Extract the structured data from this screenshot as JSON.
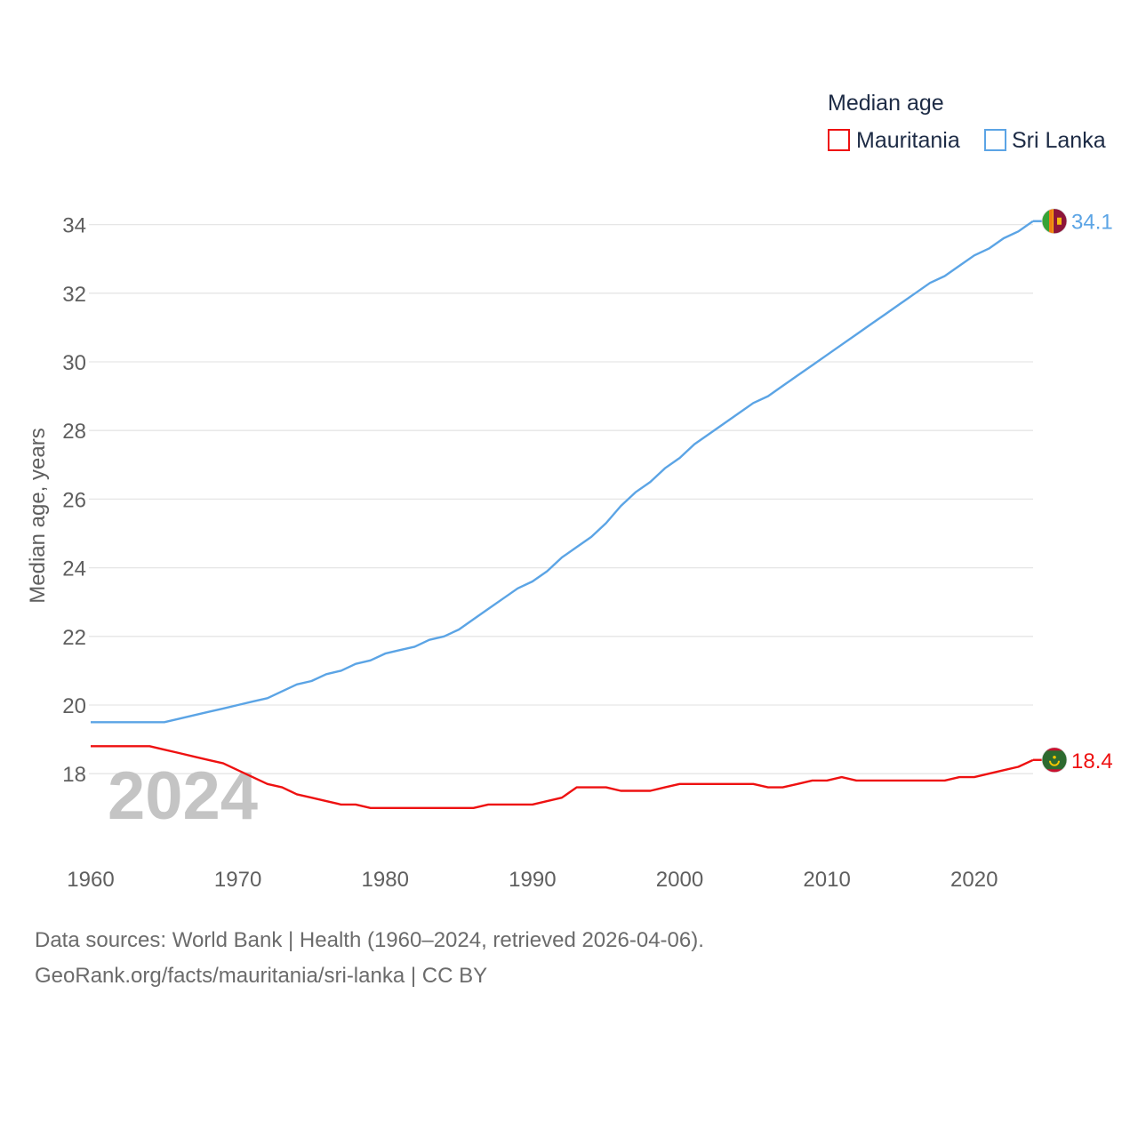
{
  "chart_data": {
    "type": "line",
    "legend": {
      "title": "Median age",
      "position": "top-right"
    },
    "ylabel": "Median age, years",
    "xlabel": "",
    "xlim": [
      1960,
      2024
    ],
    "ylim": [
      16,
      35
    ],
    "x_ticks": [
      1960,
      1970,
      1980,
      1990,
      2000,
      2010,
      2020
    ],
    "y_ticks": [
      18,
      20,
      22,
      24,
      26,
      28,
      30,
      32,
      34
    ],
    "year_watermark": "2024",
    "series": [
      {
        "name": "Mauritania",
        "color": "#ee1111",
        "flag": "mauritania-flag-icon",
        "end_label": "18.4",
        "x": [
          1960,
          1961,
          1962,
          1963,
          1964,
          1965,
          1966,
          1967,
          1968,
          1969,
          1970,
          1971,
          1972,
          1973,
          1974,
          1975,
          1976,
          1977,
          1978,
          1979,
          1980,
          1981,
          1982,
          1983,
          1984,
          1985,
          1986,
          1987,
          1988,
          1989,
          1990,
          1991,
          1992,
          1993,
          1994,
          1995,
          1996,
          1997,
          1998,
          1999,
          2000,
          2001,
          2002,
          2003,
          2004,
          2005,
          2006,
          2007,
          2008,
          2009,
          2010,
          2011,
          2012,
          2013,
          2014,
          2015,
          2016,
          2017,
          2018,
          2019,
          2020,
          2021,
          2022,
          2023,
          2024
        ],
        "values": [
          18.8,
          18.8,
          18.8,
          18.8,
          18.8,
          18.7,
          18.6,
          18.5,
          18.4,
          18.3,
          18.1,
          17.9,
          17.7,
          17.6,
          17.4,
          17.3,
          17.2,
          17.1,
          17.1,
          17.0,
          17.0,
          17.0,
          17.0,
          17.0,
          17.0,
          17.0,
          17.0,
          17.1,
          17.1,
          17.1,
          17.1,
          17.2,
          17.3,
          17.6,
          17.6,
          17.6,
          17.5,
          17.5,
          17.5,
          17.6,
          17.7,
          17.7,
          17.7,
          17.7,
          17.7,
          17.7,
          17.6,
          17.6,
          17.7,
          17.8,
          17.8,
          17.9,
          17.8,
          17.8,
          17.8,
          17.8,
          17.8,
          17.8,
          17.8,
          17.9,
          17.9,
          18.0,
          18.1,
          18.2,
          18.4
        ]
      },
      {
        "name": "Sri Lanka",
        "color": "#5ba4e5",
        "flag": "sri-lanka-flag-icon",
        "end_label": "34.1",
        "x": [
          1960,
          1961,
          1962,
          1963,
          1964,
          1965,
          1966,
          1967,
          1968,
          1969,
          1970,
          1971,
          1972,
          1973,
          1974,
          1975,
          1976,
          1977,
          1978,
          1979,
          1980,
          1981,
          1982,
          1983,
          1984,
          1985,
          1986,
          1987,
          1988,
          1989,
          1990,
          1991,
          1992,
          1993,
          1994,
          1995,
          1996,
          1997,
          1998,
          1999,
          2000,
          2001,
          2002,
          2003,
          2004,
          2005,
          2006,
          2007,
          2008,
          2009,
          2010,
          2011,
          2012,
          2013,
          2014,
          2015,
          2016,
          2017,
          2018,
          2019,
          2020,
          2021,
          2022,
          2023,
          2024
        ],
        "values": [
          19.5,
          19.5,
          19.5,
          19.5,
          19.5,
          19.5,
          19.6,
          19.7,
          19.8,
          19.9,
          20.0,
          20.1,
          20.2,
          20.4,
          20.6,
          20.7,
          20.9,
          21.0,
          21.2,
          21.3,
          21.5,
          21.6,
          21.7,
          21.9,
          22.0,
          22.2,
          22.5,
          22.8,
          23.1,
          23.4,
          23.6,
          23.9,
          24.3,
          24.6,
          24.9,
          25.3,
          25.8,
          26.2,
          26.5,
          26.9,
          27.2,
          27.6,
          27.9,
          28.2,
          28.5,
          28.8,
          29.0,
          29.3,
          29.6,
          29.9,
          30.2,
          30.5,
          30.8,
          31.1,
          31.4,
          31.7,
          32.0,
          32.3,
          32.5,
          32.8,
          33.1,
          33.3,
          33.6,
          33.8,
          34.1
        ]
      }
    ]
  },
  "source": {
    "line1": "Data sources: World Bank | Health (1960–2024, retrieved 2026-04-06).",
    "line2": "GeoRank.org/facts/mauritania/sri-lanka | CC BY"
  }
}
